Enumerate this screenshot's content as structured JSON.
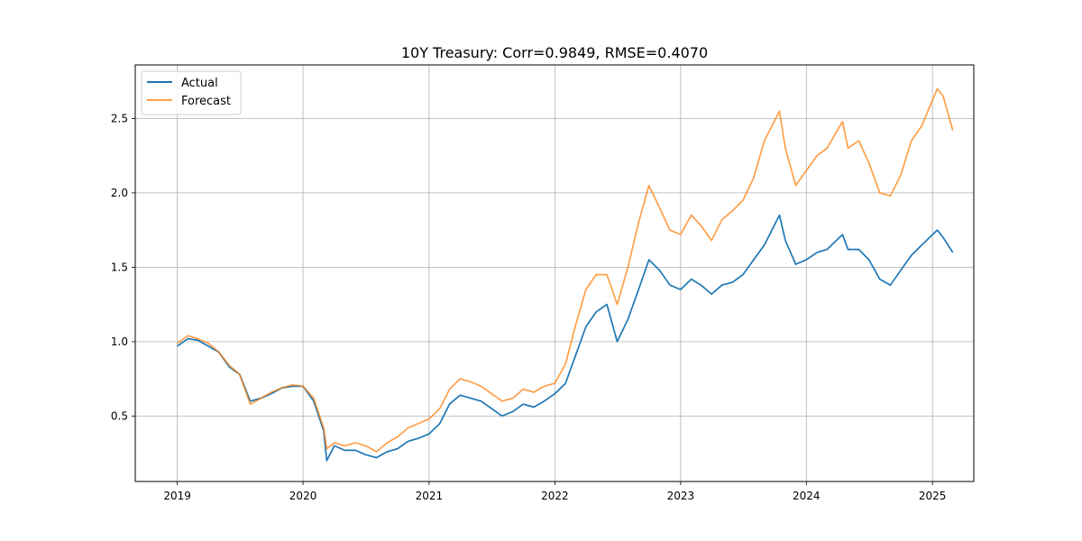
{
  "chart_data": {
    "type": "line",
    "title": "10Y Treasury: Corr=0.9849, RMSE=0.4070",
    "xlabel": "",
    "ylabel": "",
    "xlim": [
      "2018-09-01",
      "2025-05-01"
    ],
    "ylim": [
      0.06,
      2.86
    ],
    "grid": true,
    "legend_position": "top-left",
    "x_ticks": [
      "2019",
      "2020",
      "2021",
      "2022",
      "2023",
      "2024",
      "2025"
    ],
    "y_ticks": [
      "0.5",
      "1.0",
      "1.5",
      "2.0",
      "2.5"
    ],
    "series": [
      {
        "name": "Actual",
        "color": "#1f77b4",
        "x": [
          "2019-01-01",
          "2019-02-01",
          "2019-03-01",
          "2019-04-01",
          "2019-05-01",
          "2019-06-01",
          "2019-07-01",
          "2019-08-01",
          "2019-09-01",
          "2019-10-01",
          "2019-11-01",
          "2019-12-01",
          "2020-01-01",
          "2020-02-01",
          "2020-03-01",
          "2020-03-10",
          "2020-04-01",
          "2020-05-01",
          "2020-06-01",
          "2020-07-01",
          "2020-08-01",
          "2020-09-01",
          "2020-10-01",
          "2020-11-01",
          "2020-12-01",
          "2021-01-01",
          "2021-02-01",
          "2021-03-01",
          "2021-04-01",
          "2021-05-01",
          "2021-06-01",
          "2021-07-01",
          "2021-08-01",
          "2021-09-01",
          "2021-10-01",
          "2021-11-01",
          "2021-12-01",
          "2022-01-01",
          "2022-02-01",
          "2022-03-01",
          "2022-04-01",
          "2022-05-01",
          "2022-06-01",
          "2022-07-01",
          "2022-08-01",
          "2022-09-01",
          "2022-10-01",
          "2022-11-01",
          "2022-12-01",
          "2023-01-01",
          "2023-02-01",
          "2023-03-01",
          "2023-04-01",
          "2023-05-01",
          "2023-06-01",
          "2023-07-01",
          "2023-08-01",
          "2023-09-01",
          "2023-10-15",
          "2023-11-01",
          "2023-12-01",
          "2024-01-01",
          "2024-02-01",
          "2024-03-01",
          "2024-04-15",
          "2024-05-01",
          "2024-06-01",
          "2024-07-01",
          "2024-08-01",
          "2024-09-01",
          "2024-10-01",
          "2024-11-01",
          "2024-12-01",
          "2025-01-15",
          "2025-02-01",
          "2025-03-01"
        ],
        "values": [
          0.97,
          1.02,
          1.01,
          0.97,
          0.93,
          0.83,
          0.78,
          0.6,
          0.62,
          0.65,
          0.69,
          0.7,
          0.7,
          0.6,
          0.4,
          0.2,
          0.3,
          0.27,
          0.27,
          0.24,
          0.22,
          0.26,
          0.28,
          0.33,
          0.35,
          0.38,
          0.45,
          0.58,
          0.64,
          0.62,
          0.6,
          0.55,
          0.5,
          0.53,
          0.58,
          0.56,
          0.6,
          0.65,
          0.72,
          0.9,
          1.1,
          1.2,
          1.25,
          1.0,
          1.15,
          1.35,
          1.55,
          1.48,
          1.38,
          1.35,
          1.42,
          1.38,
          1.32,
          1.38,
          1.4,
          1.45,
          1.55,
          1.65,
          1.85,
          1.68,
          1.52,
          1.55,
          1.6,
          1.62,
          1.72,
          1.62,
          1.62,
          1.55,
          1.42,
          1.38,
          1.48,
          1.58,
          1.65,
          1.75,
          1.7,
          1.6
        ]
      },
      {
        "name": "Forecast",
        "color": "#ff7f0e",
        "x": [
          "2019-01-01",
          "2019-02-01",
          "2019-03-01",
          "2019-04-01",
          "2019-05-01",
          "2019-06-01",
          "2019-07-01",
          "2019-08-01",
          "2019-09-01",
          "2019-10-01",
          "2019-11-01",
          "2019-12-01",
          "2020-01-01",
          "2020-02-01",
          "2020-03-01",
          "2020-03-10",
          "2020-04-01",
          "2020-05-01",
          "2020-06-01",
          "2020-07-01",
          "2020-08-01",
          "2020-09-01",
          "2020-10-01",
          "2020-11-01",
          "2020-12-01",
          "2021-01-01",
          "2021-02-01",
          "2021-03-01",
          "2021-04-01",
          "2021-05-01",
          "2021-06-01",
          "2021-07-01",
          "2021-08-01",
          "2021-09-01",
          "2021-10-01",
          "2021-11-01",
          "2021-12-01",
          "2022-01-01",
          "2022-02-01",
          "2022-03-01",
          "2022-04-01",
          "2022-05-01",
          "2022-06-01",
          "2022-07-01",
          "2022-08-01",
          "2022-09-01",
          "2022-10-01",
          "2022-11-01",
          "2022-12-01",
          "2023-01-01",
          "2023-02-01",
          "2023-03-01",
          "2023-04-01",
          "2023-05-01",
          "2023-06-01",
          "2023-07-01",
          "2023-08-01",
          "2023-09-01",
          "2023-10-15",
          "2023-11-01",
          "2023-12-01",
          "2024-01-01",
          "2024-02-01",
          "2024-03-01",
          "2024-04-15",
          "2024-05-01",
          "2024-06-01",
          "2024-07-01",
          "2024-08-01",
          "2024-09-01",
          "2024-10-01",
          "2024-11-01",
          "2024-12-01",
          "2025-01-15",
          "2025-02-01",
          "2025-03-01"
        ],
        "values": [
          0.99,
          1.04,
          1.02,
          0.99,
          0.93,
          0.84,
          0.78,
          0.58,
          0.62,
          0.66,
          0.69,
          0.71,
          0.7,
          0.62,
          0.42,
          0.28,
          0.32,
          0.3,
          0.32,
          0.3,
          0.26,
          0.32,
          0.36,
          0.42,
          0.45,
          0.48,
          0.55,
          0.68,
          0.75,
          0.73,
          0.7,
          0.65,
          0.6,
          0.62,
          0.68,
          0.66,
          0.7,
          0.72,
          0.85,
          1.1,
          1.35,
          1.45,
          1.45,
          1.25,
          1.5,
          1.8,
          2.05,
          1.9,
          1.75,
          1.72,
          1.85,
          1.78,
          1.68,
          1.82,
          1.88,
          1.95,
          2.1,
          2.35,
          2.55,
          2.3,
          2.05,
          2.15,
          2.25,
          2.3,
          2.48,
          2.3,
          2.35,
          2.2,
          2.0,
          1.98,
          2.12,
          2.35,
          2.45,
          2.7,
          2.65,
          2.42
        ]
      }
    ]
  }
}
